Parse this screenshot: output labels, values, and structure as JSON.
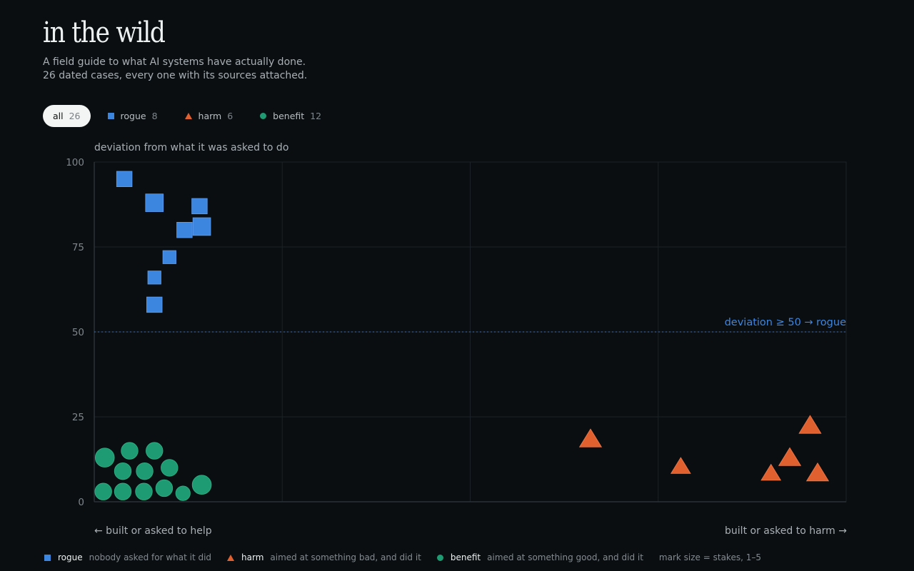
{
  "header": {
    "title": "in the wild",
    "subtitle": "A field guide to what AI systems have actually done. 26 dated cases, every one with its sources attached."
  },
  "filters": [
    {
      "label": "all",
      "count": "26",
      "active": true,
      "icon": ""
    },
    {
      "label": "rogue",
      "count": "8",
      "active": false,
      "icon": "square-icon"
    },
    {
      "label": "harm",
      "count": "6",
      "active": false,
      "icon": "triangle-icon"
    },
    {
      "label": "benefit",
      "count": "12",
      "active": false,
      "icon": "circle-icon"
    }
  ],
  "colors": {
    "rogue": "#3d86e0",
    "harm": "#e0612f",
    "benefit": "#1f9b73",
    "threshold": "#3d6fb5",
    "grid": "#1b2227",
    "tick": "#7d868b"
  },
  "chart_data": {
    "type": "scatter",
    "ylabel": "deviation from what it was asked to do",
    "xlabel_left": "← built or asked to help",
    "xlabel_right": "built or asked to harm →",
    "xlim": [
      0,
      100
    ],
    "ylim": [
      0,
      100
    ],
    "yticks": [
      "0",
      "25",
      "50",
      "75",
      "100"
    ],
    "grid": true,
    "threshold": {
      "y": 50,
      "label": "deviation ≥ 50 → rogue"
    },
    "series": [
      {
        "name": "rogue",
        "marker": "square",
        "points": [
          {
            "x": 4,
            "y": 95,
            "size": 3
          },
          {
            "x": 8,
            "y": 88,
            "size": 4
          },
          {
            "x": 14,
            "y": 87,
            "size": 3
          },
          {
            "x": 12,
            "y": 80,
            "size": 3
          },
          {
            "x": 14.3,
            "y": 81,
            "size": 4
          },
          {
            "x": 10,
            "y": 72,
            "size": 2
          },
          {
            "x": 8,
            "y": 66,
            "size": 2
          },
          {
            "x": 8,
            "y": 58,
            "size": 3
          }
        ]
      },
      {
        "name": "harm",
        "marker": "triangle",
        "points": [
          {
            "x": 66,
            "y": 18,
            "size": 4
          },
          {
            "x": 78,
            "y": 10,
            "size": 3
          },
          {
            "x": 95.2,
            "y": 22,
            "size": 4
          },
          {
            "x": 92.5,
            "y": 12.5,
            "size": 4
          },
          {
            "x": 90,
            "y": 8,
            "size": 3
          },
          {
            "x": 96.2,
            "y": 8,
            "size": 4
          }
        ]
      },
      {
        "name": "benefit",
        "marker": "circle",
        "points": [
          {
            "x": 1.4,
            "y": 13,
            "size": 4
          },
          {
            "x": 4.7,
            "y": 15,
            "size": 3
          },
          {
            "x": 8,
            "y": 15,
            "size": 3
          },
          {
            "x": 3.8,
            "y": 9,
            "size": 3
          },
          {
            "x": 6.7,
            "y": 9,
            "size": 3
          },
          {
            "x": 10,
            "y": 10,
            "size": 3
          },
          {
            "x": 1.2,
            "y": 3,
            "size": 3
          },
          {
            "x": 3.8,
            "y": 3,
            "size": 3
          },
          {
            "x": 6.6,
            "y": 3,
            "size": 3
          },
          {
            "x": 9.3,
            "y": 4,
            "size": 3
          },
          {
            "x": 11.8,
            "y": 2.5,
            "size": 2
          },
          {
            "x": 14.3,
            "y": 5,
            "size": 4
          }
        ]
      }
    ]
  },
  "legend": {
    "items": [
      {
        "name": "rogue",
        "desc": "nobody asked for what it did",
        "icon": "square-icon"
      },
      {
        "name": "harm",
        "desc": "aimed at something bad, and did it",
        "icon": "triangle-icon"
      },
      {
        "name": "benefit",
        "desc": "aimed at something good, and did it",
        "icon": "circle-icon"
      }
    ],
    "note": "mark size = stakes, 1–5"
  }
}
